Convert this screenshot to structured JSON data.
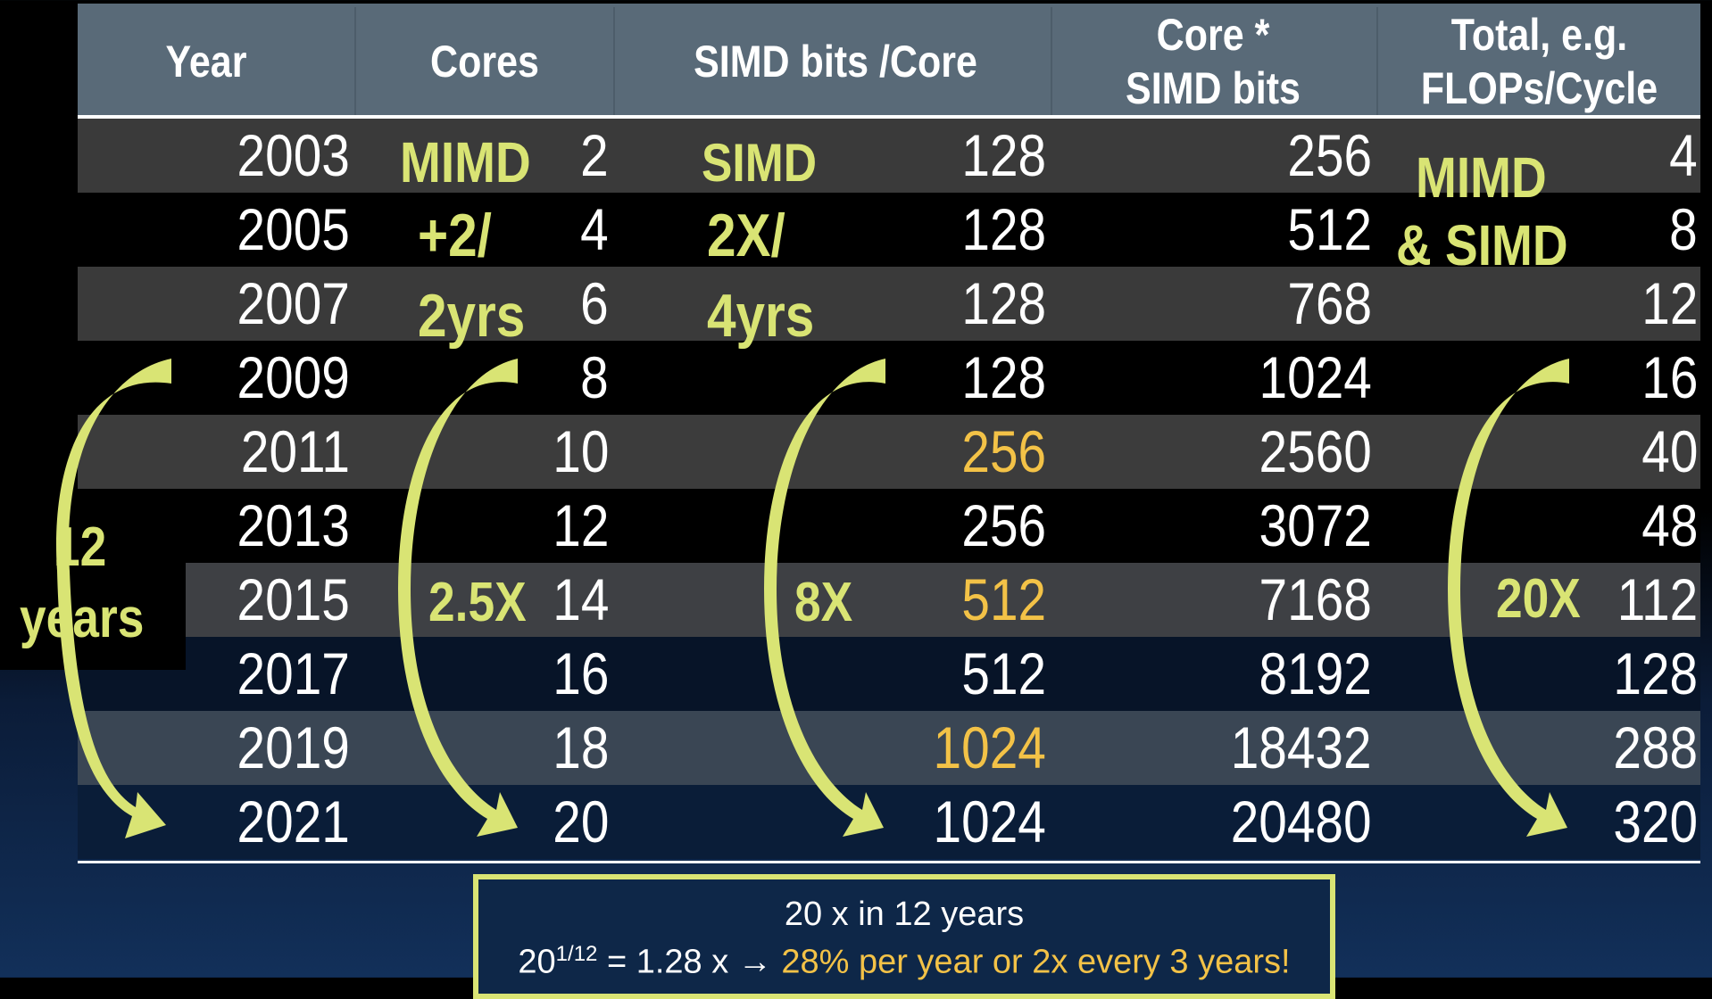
{
  "columns": [
    {
      "key": "year",
      "label": "Year"
    },
    {
      "key": "cores",
      "label": "Cores"
    },
    {
      "key": "simd_bits",
      "label": "SIMD bits /Core"
    },
    {
      "key": "core_simd",
      "label": "Core *\nSIMD bits"
    },
    {
      "key": "total",
      "label": "Total, e.g.\nFLOPs/Cycle"
    }
  ],
  "rows": [
    {
      "year": "2003",
      "cores": "2",
      "simd_bits": "128",
      "core_simd": "256",
      "total": "4"
    },
    {
      "year": "2005",
      "cores": "4",
      "simd_bits": "128",
      "core_simd": "512",
      "total": "8"
    },
    {
      "year": "2007",
      "cores": "6",
      "simd_bits": "128",
      "core_simd": "768",
      "total": "12"
    },
    {
      "year": "2009",
      "cores": "8",
      "simd_bits": "128",
      "core_simd": "1024",
      "total": "16"
    },
    {
      "year": "2011",
      "cores": "10",
      "simd_bits": "256",
      "core_simd": "2560",
      "total": "40",
      "simd_highlight": true
    },
    {
      "year": "2013",
      "cores": "12",
      "simd_bits": "256",
      "core_simd": "3072",
      "total": "48"
    },
    {
      "year": "2015",
      "cores": "14",
      "simd_bits": "512",
      "core_simd": "7168",
      "total": "112",
      "simd_highlight": true
    },
    {
      "year": "2017",
      "cores": "16",
      "simd_bits": "512",
      "core_simd": "8192",
      "total": "128"
    },
    {
      "year": "2019",
      "cores": "18",
      "simd_bits": "1024",
      "core_simd": "18432",
      "total": "288",
      "simd_highlight": true
    },
    {
      "year": "2021",
      "cores": "20",
      "simd_bits": "1024",
      "core_simd": "20480",
      "total": "320"
    }
  ],
  "annotations": {
    "mimd_label": "MIMD",
    "mimd_rate_1": "+2/",
    "mimd_rate_2": "2yrs",
    "simd_label": "SIMD",
    "simd_rate_1": "2X/",
    "simd_rate_2": "4yrs",
    "combined_1": "MIMD",
    "combined_2": "& SIMD",
    "years_num": "12",
    "years_word": "years",
    "cores_growth": "2.5X",
    "simd_growth": "8X",
    "total_growth": "20X"
  },
  "summary": {
    "line1": "20 x in 12 years",
    "base": "20",
    "exponent": "1/12",
    "equals": " = 1.28 x ",
    "arrow": "→",
    "highlight": " 28% per year or 2x every 3 years!"
  },
  "colors": {
    "header_bg": "#596a78",
    "accent_text": "#d9e474",
    "highlight_number": "#f3c247",
    "row_band_gray": "#3a3a3a"
  }
}
